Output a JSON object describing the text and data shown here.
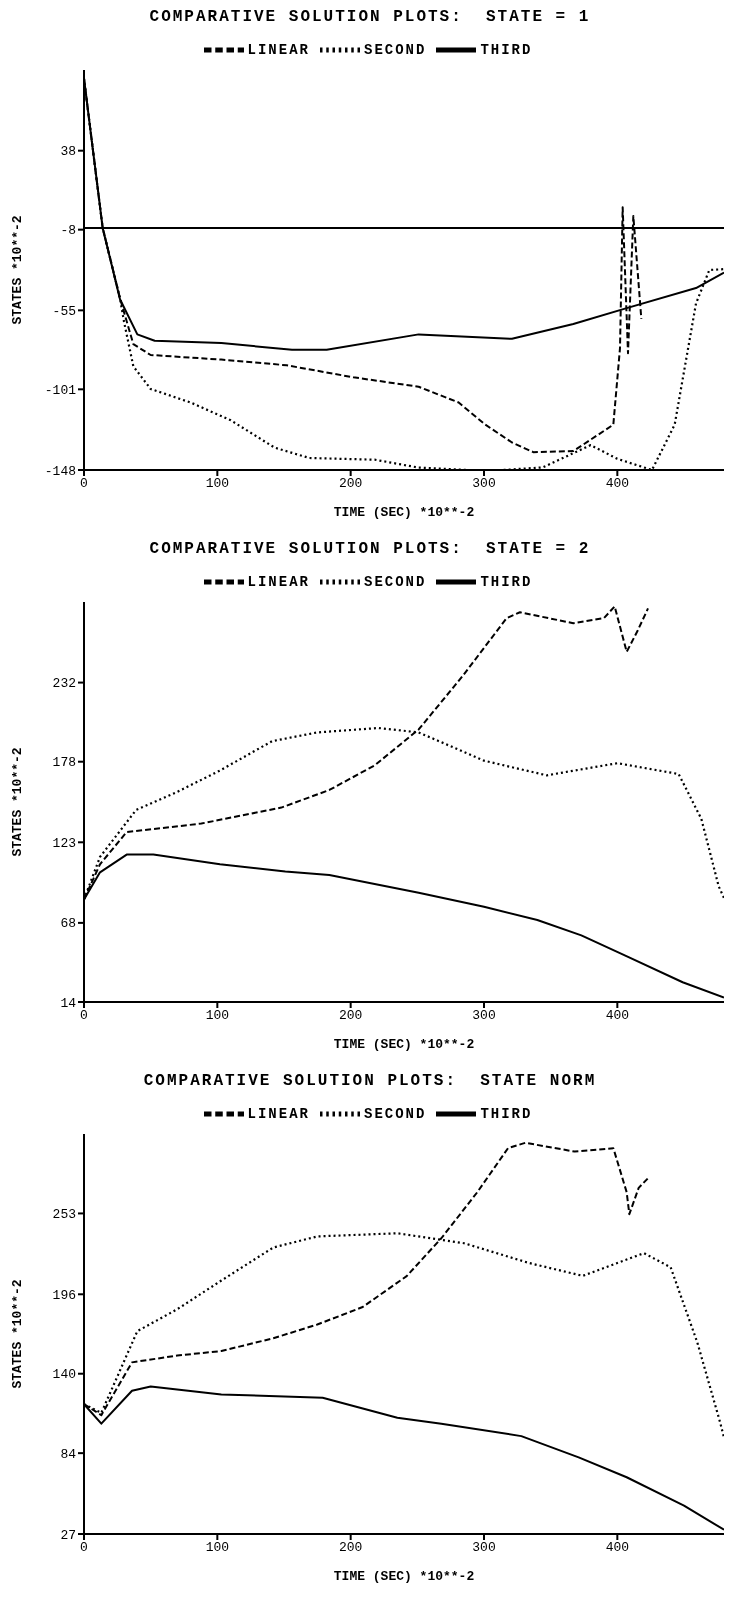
{
  "chart_data": [
    {
      "type": "line",
      "title": "COMPARATIVE SOLUTION PLOTS:  STATE = 1",
      "xlabel": "TIME (SEC)   *10**-2",
      "ylabel": "STATES   *10**-2",
      "xlim": [
        0,
        480
      ],
      "xticks": [
        0,
        100,
        200,
        300,
        400
      ],
      "ylim": [
        -148,
        85
      ],
      "yticks": [
        -148,
        -101,
        -55,
        -8,
        38
      ],
      "legend": "top",
      "ref_lines": [
        {
          "axis": "y",
          "value": -7,
          "color": "#000000"
        }
      ],
      "series": [
        {
          "name": "LINEAR",
          "color": "#000000",
          "line_style": "dashed",
          "x": [
            0,
            14,
            27,
            37,
            50,
            103,
            152,
            202,
            251,
            281,
            301,
            321,
            337,
            367,
            397,
            402,
            404,
            408,
            412,
            418
          ],
          "values": [
            80,
            -7,
            -48,
            -74.7,
            -81,
            -83.7,
            -87,
            -94,
            -99.5,
            -108.7,
            -121.6,
            -132,
            -137.6,
            -137,
            -121.6,
            -77,
            5,
            -80,
            0,
            -60
          ]
        },
        {
          "name": "SECOND",
          "color": "#000000",
          "line_style": "dotted",
          "x": [
            0,
            14,
            27,
            30,
            37,
            50,
            80,
            110,
            143,
            169,
            218,
            251,
            288,
            314,
            344,
            380,
            400,
            426,
            443,
            459,
            469,
            480
          ],
          "values": [
            80,
            -7,
            -48,
            -61.6,
            -87.6,
            -100.8,
            -108.7,
            -119,
            -135,
            -141,
            -142,
            -146.6,
            -148,
            -148,
            -146.5,
            -133.5,
            -141.5,
            -148,
            -121.6,
            -51,
            -31.5,
            -31
          ]
        },
        {
          "name": "THIRD",
          "color": "#000000",
          "line_style": "solid",
          "x": [
            0,
            14,
            27,
            40,
            53,
            103,
            156,
            182,
            251,
            321,
            367,
            407,
            459,
            480
          ],
          "values": [
            80,
            -7,
            -48.5,
            -69,
            -72.7,
            -74,
            -78,
            -78,
            -69,
            -71.6,
            -63,
            -53.7,
            -42,
            -33
          ]
        }
      ]
    },
    {
      "type": "line",
      "title": "COMPARATIVE SOLUTION PLOTS:  STATE = 2",
      "xlabel": "TIME (SEC)   *10**-2",
      "ylabel": "STATES   *10**-2",
      "xlim": [
        0,
        480
      ],
      "xticks": [
        0,
        100,
        200,
        300,
        400
      ],
      "ylim": [
        14,
        287
      ],
      "yticks": [
        14,
        68,
        123,
        178,
        232
      ],
      "legend": "top",
      "series": [
        {
          "name": "LINEAR",
          "color": "#000000",
          "line_style": "dashed",
          "x": [
            0,
            12,
            32,
            52,
            88,
            148,
            184,
            218,
            251,
            284,
            317,
            327,
            367,
            390,
            398,
            407,
            415,
            423
          ],
          "values": [
            84,
            108,
            130,
            132,
            135.8,
            146.7,
            158.7,
            175.5,
            200,
            236.5,
            276,
            280,
            272.5,
            276,
            284,
            253,
            267,
            282.6
          ]
        },
        {
          "name": "SECOND",
          "color": "#000000",
          "line_style": "dotted",
          "x": [
            0,
            12,
            39,
            69,
            102,
            141,
            175,
            221,
            251,
            300,
            347,
            400,
            446,
            463,
            476,
            480
          ],
          "values": [
            84,
            113,
            145,
            157,
            172,
            192,
            198,
            201,
            198,
            178.7,
            168.7,
            177,
            169.6,
            139,
            93,
            85
          ]
        },
        {
          "name": "THIRD",
          "color": "#000000",
          "line_style": "solid",
          "x": [
            0,
            12,
            32,
            52,
            102,
            151,
            184,
            251,
            300,
            340,
            373,
            406,
            449,
            480
          ],
          "values": [
            84,
            102.5,
            114.6,
            114.6,
            108,
            103,
            100.7,
            88.5,
            79,
            70,
            59.5,
            45.7,
            27.5,
            17
          ]
        }
      ]
    },
    {
      "type": "line",
      "title": "COMPARATIVE SOLUTION PLOTS:  STATE NORM",
      "xlabel": "TIME (SEC)   *10**-2",
      "ylabel": "STATES   *10**-2",
      "xlim": [
        0,
        480
      ],
      "xticks": [
        0,
        100,
        200,
        300,
        400
      ],
      "ylim": [
        27,
        309
      ],
      "yticks": [
        27,
        84,
        140,
        196,
        253
      ],
      "legend": "top",
      "series": [
        {
          "name": "LINEAR",
          "color": "#000000",
          "line_style": "dashed",
          "x": [
            0,
            13,
            36,
            70,
            103,
            142,
            175,
            209,
            242,
            268,
            295,
            318,
            331,
            368,
            397,
            407,
            409,
            416,
            424
          ],
          "values": [
            118.5,
            110.8,
            148,
            152.8,
            156,
            165,
            174.7,
            187,
            208.8,
            235.5,
            268,
            299,
            302.8,
            296.6,
            299,
            268,
            252.5,
            271,
            278.8
          ]
        },
        {
          "name": "SECOND",
          "color": "#000000",
          "line_style": "dotted",
          "x": [
            0,
            13,
            40,
            70,
            103,
            142,
            175,
            235,
            285,
            334,
            374,
            420,
            440,
            460,
            477,
            480
          ],
          "values": [
            118.5,
            112.4,
            170,
            185.5,
            205.7,
            229,
            236.8,
            239,
            232,
            218,
            209,
            225,
            215,
            162,
            106,
            95
          ]
        },
        {
          "name": "THIRD",
          "color": "#000000",
          "line_style": "solid",
          "x": [
            0,
            13,
            36,
            50,
            103,
            179,
            235,
            268,
            328,
            371,
            407,
            450,
            480
          ],
          "values": [
            118.5,
            104.8,
            128,
            131,
            125.4,
            123,
            109,
            104.8,
            96,
            81,
            67,
            47,
            30
          ]
        }
      ]
    }
  ]
}
